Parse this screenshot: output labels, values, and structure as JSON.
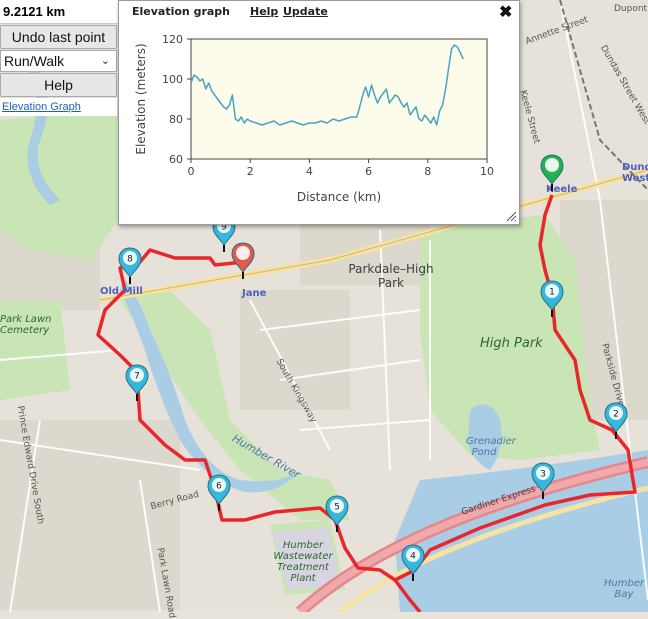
{
  "panel": {
    "distance": "9.2121 km",
    "undo_label": "Undo last point",
    "mode_value": "Run/Walk",
    "help_label": "Help",
    "elevation_link": "Elevation Graph"
  },
  "popup": {
    "title": "Elevation graph",
    "help_link": "Help",
    "update_link": "Update",
    "close_symbol": "✖"
  },
  "chart_data": {
    "type": "line",
    "xlabel": "Distance (km)",
    "ylabel": "Elevation (meters)",
    "xlim": [
      0,
      10
    ],
    "ylim": [
      60,
      120
    ],
    "xticks": [
      0,
      2,
      4,
      6,
      8,
      10
    ],
    "yticks": [
      60,
      80,
      100,
      120
    ],
    "grid": false,
    "color": "#4aa3c8",
    "series": [
      {
        "x": [
          0,
          0.1,
          0.2,
          0.3,
          0.4,
          0.5,
          0.6,
          0.7,
          0.8,
          0.9,
          1.0,
          1.1,
          1.2,
          1.3,
          1.4,
          1.5,
          1.6,
          1.7,
          1.8,
          1.9,
          2.0,
          2.2,
          2.4,
          2.6,
          2.8,
          3.0,
          3.2,
          3.4,
          3.6,
          3.8,
          4.0,
          4.2,
          4.4,
          4.6,
          4.8,
          5.0,
          5.2,
          5.4,
          5.6,
          5.7,
          5.8,
          5.9,
          6.0,
          6.1,
          6.2,
          6.3,
          6.4,
          6.5,
          6.6,
          6.7,
          6.8,
          6.9,
          7.0,
          7.1,
          7.2,
          7.3,
          7.4,
          7.5,
          7.6,
          7.7,
          7.8,
          7.9,
          8.0,
          8.1,
          8.2,
          8.3,
          8.4,
          8.5,
          8.6,
          8.7,
          8.8,
          8.9,
          9.0,
          9.1,
          9.2
        ],
        "y": [
          98,
          102,
          101,
          99,
          100,
          95,
          98,
          94,
          92,
          90,
          88,
          86,
          85,
          87,
          92,
          80,
          79,
          81,
          78,
          80,
          79,
          78,
          77,
          78,
          79,
          77,
          78,
          79,
          78,
          77,
          78,
          78,
          79,
          78,
          80,
          79,
          80,
          81,
          81,
          86,
          92,
          96,
          91,
          97,
          92,
          88,
          91,
          93,
          95,
          88,
          90,
          92,
          91,
          88,
          86,
          88,
          82,
          84,
          86,
          80,
          79,
          82,
          80,
          78,
          81,
          77,
          84,
          87,
          95,
          105,
          115,
          117,
          116,
          113,
          110
        ]
      }
    ]
  },
  "map_labels": {
    "parkdale": "Parkdale–High Park",
    "high_park": "High Park",
    "grenadier": "Grenadier Pond",
    "humber_river": "Humber River",
    "park_lawn_cemetery": "Park Lawn Cemetery",
    "treatment_plant": "Humber Wastewater Treatment Plant",
    "humber_bay": "Humber Bay",
    "old_mill": "Old Mill",
    "jane": "Jane",
    "keele": "Keele",
    "dundas_west": "Dundas West",
    "dupont": "Dupont",
    "gardiner": "Gardiner Express",
    "berry_road": "Berry Road",
    "south_kingsway": "South Kingsway",
    "prince_edward": "Prince Edward Drive South",
    "park_lawn_road": "Park Lawn Road",
    "parkside": "Parkside Drive",
    "keele_street": "Keele Street",
    "dundas_street": "Dundas Street West",
    "annette": "Annette Street"
  },
  "markers": [
    "1",
    "2",
    "3",
    "4",
    "5",
    "6",
    "7",
    "8",
    "9"
  ],
  "colors": {
    "route": "#e8262b",
    "marker_blue": "#35b8dc",
    "marker_start": "#22b14c",
    "marker_end": "#e8584a",
    "park": "#c8e6b4",
    "water": "#a9cbe3"
  }
}
